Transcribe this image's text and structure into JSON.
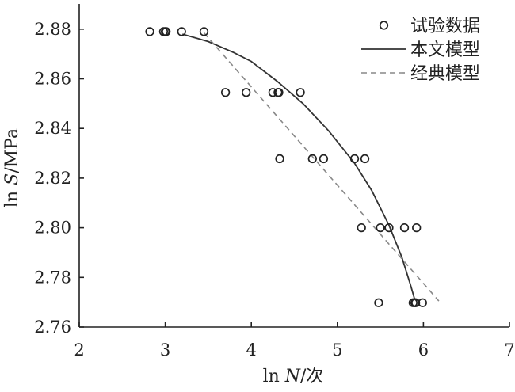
{
  "chart_data": {
    "type": "scatter",
    "title": "",
    "xlabel": {
      "prefix": "ln ",
      "var": "N",
      "unit": "/次"
    },
    "ylabel": {
      "prefix": "ln ",
      "var": "S",
      "unit": "/MPa"
    },
    "xlim": [
      2,
      7
    ],
    "ylim": [
      2.76,
      2.89
    ],
    "xticks": [
      2,
      3,
      4,
      5,
      6,
      7
    ],
    "yticks": [
      2.76,
      2.78,
      2.8,
      2.82,
      2.84,
      2.86,
      2.88
    ],
    "ytick_labels": [
      "2.76",
      "2.78",
      "2.80",
      "2.82",
      "2.84",
      "2.86",
      "2.88"
    ],
    "grid": false,
    "legend_position": "top-right",
    "series": [
      {
        "name": "试验数据",
        "kind": "scatter",
        "marker": "open-circle",
        "color": "#222222",
        "points": [
          [
            2.82,
            2.879
          ],
          [
            2.98,
            2.879
          ],
          [
            3.0,
            2.879
          ],
          [
            3.01,
            2.879
          ],
          [
            3.19,
            2.879
          ],
          [
            3.45,
            2.879
          ],
          [
            3.7,
            2.8545
          ],
          [
            3.94,
            2.8545
          ],
          [
            4.25,
            2.8545
          ],
          [
            4.31,
            2.8545
          ],
          [
            4.32,
            2.8545
          ],
          [
            4.57,
            2.8545
          ],
          [
            4.33,
            2.8278
          ],
          [
            4.71,
            2.8278
          ],
          [
            4.84,
            2.8278
          ],
          [
            5.2,
            2.8278
          ],
          [
            5.32,
            2.8278
          ],
          [
            5.28,
            2.8
          ],
          [
            5.5,
            2.8
          ],
          [
            5.6,
            2.8
          ],
          [
            5.78,
            2.8
          ],
          [
            5.92,
            2.8
          ],
          [
            5.48,
            2.7698
          ],
          [
            5.88,
            2.7698
          ],
          [
            5.9,
            2.7698
          ],
          [
            5.91,
            2.7698
          ],
          [
            5.99,
            2.7698
          ]
        ]
      },
      {
        "name": "本文模型",
        "kind": "line",
        "style": "solid",
        "color": "#333333",
        "points": [
          [
            3.2,
            2.878
          ],
          [
            3.5,
            2.875
          ],
          [
            3.8,
            2.8705
          ],
          [
            4.0,
            2.867
          ],
          [
            4.3,
            2.859
          ],
          [
            4.6,
            2.85
          ],
          [
            4.9,
            2.839
          ],
          [
            5.2,
            2.826
          ],
          [
            5.4,
            2.815
          ],
          [
            5.6,
            2.801
          ],
          [
            5.75,
            2.788
          ],
          [
            5.85,
            2.777
          ],
          [
            5.9,
            2.771
          ]
        ]
      },
      {
        "name": "经典模型",
        "kind": "line",
        "style": "dashed",
        "color": "#888888",
        "points": [
          [
            3.45,
            2.8785
          ],
          [
            6.18,
            2.7705
          ]
        ]
      }
    ]
  }
}
